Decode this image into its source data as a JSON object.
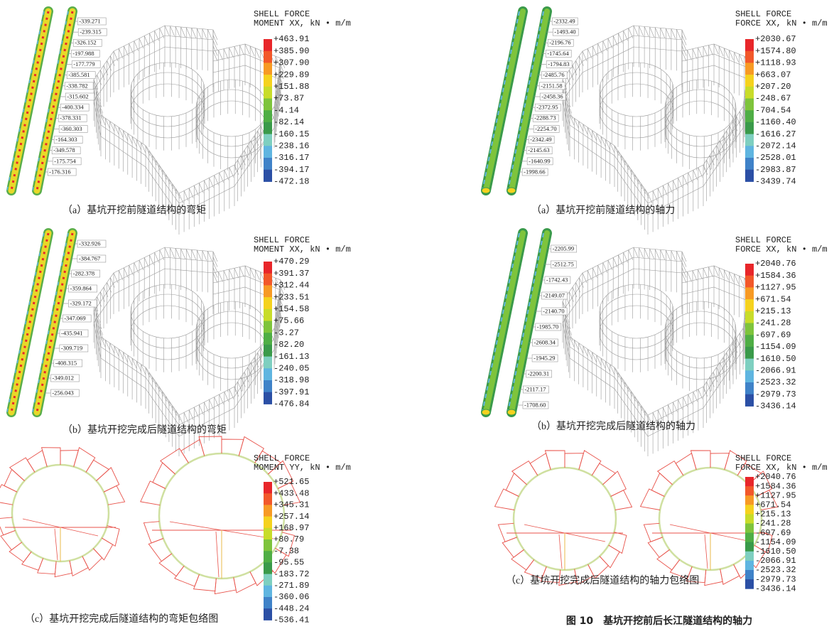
{
  "panels": [
    {
      "header": "SHELL FORCE",
      "quantity": "MOMENT XX, kN • m/m",
      "legend": [
        "+463.91",
        "+385.90",
        "+307.90",
        "+229.89",
        "+151.88",
        "+73.87",
        "-4.14",
        "-82.14",
        "-160.15",
        "-238.16",
        "-316.17",
        "-394.17",
        "-472.18"
      ],
      "annotations": [
        "-339.271",
        "-239.315",
        "-326.152",
        "-197.988",
        "-177.779",
        "-385.581",
        "-338.782",
        "-315.602",
        "-400.334",
        "-378.331",
        "-360.303",
        "-164.303",
        "-349.578",
        "-175.754",
        "-176.316"
      ],
      "caption": "（a）基坑开挖前隧道结构的弯矩"
    },
    {
      "header": "SHELL FORCE",
      "quantity": "FORCE XX, kN • m/m",
      "legend": [
        "+2030.67",
        "+1574.80",
        "+1118.93",
        "+663.07",
        "+207.20",
        "-248.67",
        "-704.54",
        "-1160.40",
        "-1616.27",
        "-2072.14",
        "-2528.01",
        "-2983.87",
        "-3439.74"
      ],
      "annotations": [
        "-2332.49",
        "-1493.40",
        "-2196.76",
        "-1745.64",
        "-1794.83",
        "-2485.76",
        "-2151.58",
        "-2458.36",
        "-2372.95",
        "-2288.73",
        "-2254.70",
        "-2342.49",
        "-2145.63",
        "-1640.99",
        "-1998.66"
      ],
      "caption": "（a）基坑开挖前隧道结构的轴力"
    },
    {
      "header": "SHELL FORCE",
      "quantity": "MOMENT XX, kN • m/m",
      "legend": [
        "+470.29",
        "+391.37",
        "+312.44",
        "+233.51",
        "+154.58",
        "+75.66",
        "-3.27",
        "-82.20",
        "-161.13",
        "-240.05",
        "-318.98",
        "-397.91",
        "-476.84"
      ],
      "annotations": [
        "-332.926",
        "-384.767",
        "-282.378",
        "-359.864",
        "-329.172",
        "-347.069",
        "-435.941",
        "-309.719",
        "-408.315",
        "-349.012",
        "-256.043"
      ],
      "caption": "（b）基坑开挖完成后隧道结构的弯矩"
    },
    {
      "header": "SHELL FORCE",
      "quantity": "FORCE XX, kN • m/m",
      "legend": [
        "+2040.76",
        "+1584.36",
        "+1127.95",
        "+671.54",
        "+215.13",
        "-241.28",
        "-697.69",
        "-1154.09",
        "-1610.50",
        "-2066.91",
        "-2523.32",
        "-2979.73",
        "-3436.14"
      ],
      "annotations": [
        "-2205.99",
        "-2512.75",
        "-1742.43",
        "-2149.07",
        "-2140.70",
        "-1985.70",
        "-2608.34",
        "-1945.29",
        "-2200.31",
        "-2117.17",
        "-1708.60"
      ],
      "caption": "（b）基坑开挖完成后隧道结构的轴力"
    },
    {
      "header": "SHELL FORCE",
      "quantity": "MOMENT YY, kN • m/m",
      "legend": [
        "+521.65",
        "+433.48",
        "+345.31",
        "+257.14",
        "+168.97",
        "+80.79",
        "-7.38",
        "-95.55",
        "-183.72",
        "-271.89",
        "-360.06",
        "-448.24",
        "-536.41"
      ],
      "caption": "（c）基坑开挖完成后隧道结构的弯矩包络图"
    },
    {
      "header": "SHELL FORCE",
      "quantity": "FORCE XX, kN • m/m",
      "legend": [
        "+2040.76",
        "+1584.36",
        "+1127.95",
        "+671.54",
        "+215.13",
        "-241.28",
        "-697.69",
        "-1154.09",
        "-1610.50",
        "-2066.91",
        "-2523.32",
        "-2979.73",
        "-3436.14"
      ],
      "caption": "（c）基坑开挖完成后隧道结构的轴力包络图"
    }
  ],
  "figure_caption": "图 10　基坑开挖前后长江隧道结构的轴力"
}
